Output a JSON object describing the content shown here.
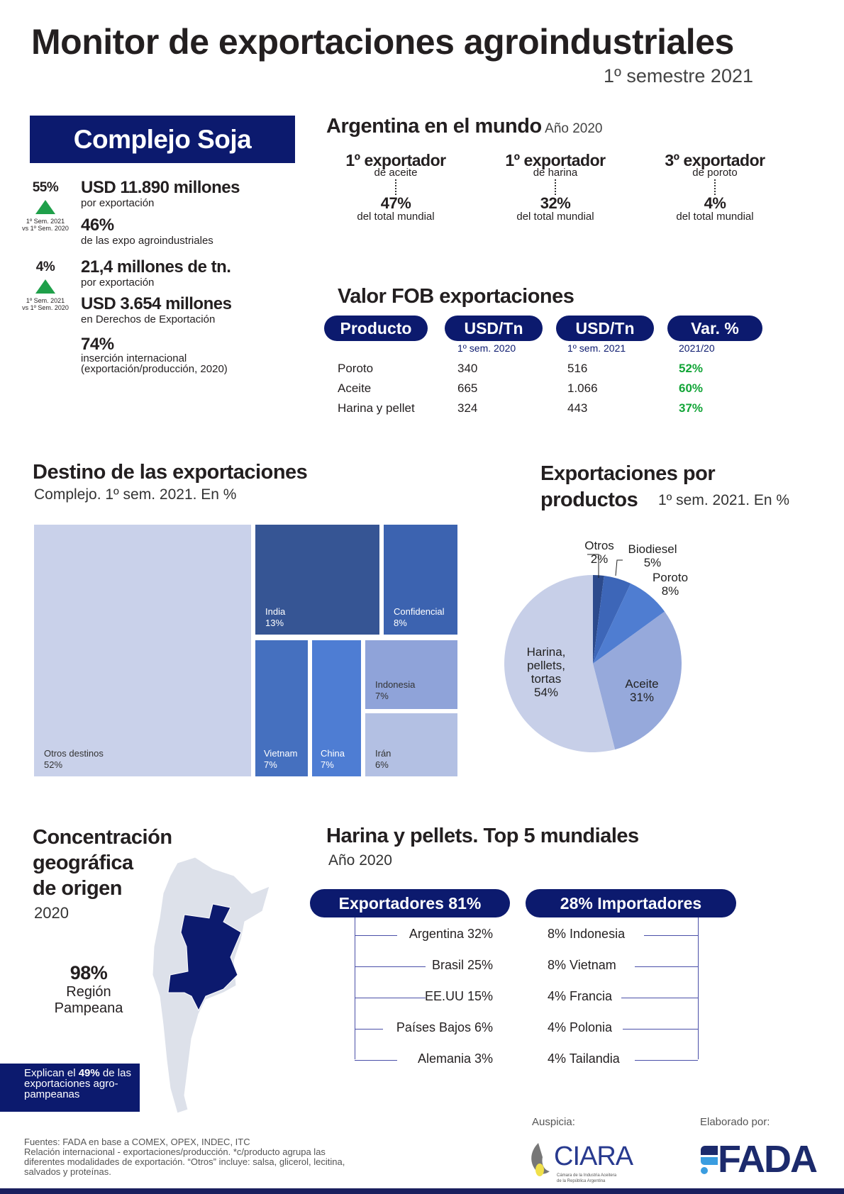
{
  "header": {
    "title": "Monitor de exportaciones agroindustriales",
    "period": "1º semestre 2021"
  },
  "complejo": {
    "title": "Complejo Soja",
    "var1": {
      "pct": "55%",
      "note1": "1º Sem. 2021",
      "note2": "vs 1º Sem. 2020"
    },
    "var2": {
      "pct": "4%",
      "note1": "1º Sem. 2021",
      "note2": "vs 1º Sem. 2020"
    },
    "stats": [
      {
        "value": "USD 11.890 millones",
        "label": "por exportación"
      },
      {
        "value": "46%",
        "label": "de las expo agroindustriales"
      },
      {
        "value": "21,4 millones de tn.",
        "label": "por exportación"
      },
      {
        "value": "USD 3.654 millones",
        "label": "en Derechos de Exportación"
      },
      {
        "value": "74%",
        "label": "inserción internacional",
        "label2": "(exportación/producción, 2020)"
      }
    ]
  },
  "mundo": {
    "title": "Argentina en el mundo",
    "year": "Año 2020",
    "items": [
      {
        "rank": "1º exportador",
        "of": "de aceite",
        "pct": "47%",
        "sub": "del total mundial"
      },
      {
        "rank": "1º exportador",
        "of": "de harina",
        "pct": "32%",
        "sub": "del total mundial"
      },
      {
        "rank": "3º exportador",
        "of": "de poroto",
        "pct": "4%",
        "sub": "del total mundial"
      }
    ]
  },
  "fob": {
    "title": "Valor FOB exportaciones",
    "headers": [
      "Producto",
      "USD/Tn",
      "USD/Tn",
      "Var. %"
    ],
    "subheaders": [
      "",
      "1º sem. 2020",
      "1º sem. 2021",
      "2021/20"
    ],
    "rows": [
      [
        "Poroto",
        "340",
        "516",
        "52%"
      ],
      [
        "Aceite",
        "665",
        "1.066",
        "60%"
      ],
      [
        "Harina y pellet",
        "324",
        "443",
        "37%"
      ]
    ]
  },
  "destino": {
    "title": "Destino de las exportaciones",
    "subtitle": "Complejo. 1º sem. 2021. En %",
    "items": [
      {
        "name": "Otros destinos",
        "pct": "52%"
      },
      {
        "name": "India",
        "pct": "13%"
      },
      {
        "name": "Confidencial",
        "pct": "8%"
      },
      {
        "name": "Vietnam",
        "pct": "7%"
      },
      {
        "name": "China",
        "pct": "7%"
      },
      {
        "name": "Indonesia",
        "pct": "7%"
      },
      {
        "name": "Irán",
        "pct": "6%"
      }
    ]
  },
  "chart_data": {
    "type": "pie",
    "title": "Exportaciones por productos",
    "subtitle": "1º sem. 2021. En %",
    "categories": [
      "Otros",
      "Biodiesel",
      "Poroto",
      "Aceite",
      "Harina, pellets, tortas"
    ],
    "values": [
      2,
      5,
      8,
      31,
      54
    ],
    "colors": [
      "#2c4a8c",
      "#3d66b8",
      "#4f7dd1",
      "#96a9db",
      "#c7cfe8"
    ]
  },
  "geo": {
    "title1": "Concentración",
    "title2": "geográfica",
    "title3": "de origen",
    "year": "2020",
    "pct": "98%",
    "region1": "Región",
    "region2": "Pampeana",
    "note_pre": "Explican el ",
    "note_bold": "49%",
    "note_post": " de las exportaciones agro-pampeanas"
  },
  "top5": {
    "title": "Harina y pellets. Top 5 mundiales",
    "year": "Año 2020",
    "exp_label": "Exportadores 81%",
    "imp_label": "28% Importadores",
    "exporters": [
      "Argentina 32%",
      "Brasil 25%",
      "EE.UU 15%",
      "Países Bajos 6%",
      "Alemania 3%"
    ],
    "importers": [
      "8% Indonesia",
      "8% Vietnam",
      "4% Francia",
      "4% Polonia",
      "4% Tailandia"
    ]
  },
  "footer": {
    "sources": [
      "Fuentes: FADA en base a COMEX, OPEX, INDEC, ITC",
      "Relación internacional - exportaciones/producción. *c/producto agrupa las",
      "diferentes modalidades de exportación. “Otros” incluye: salsa, glicerol, lecitina,",
      "salvados y proteínas."
    ],
    "sponsor_label": "Auspicia:",
    "sponsor": "CIARA",
    "sponsor_sub1": "Cámara de la Industria Aceitera",
    "sponsor_sub2": "de la República Argentina",
    "author_label": "Elaborado por:",
    "author": "FADA"
  }
}
